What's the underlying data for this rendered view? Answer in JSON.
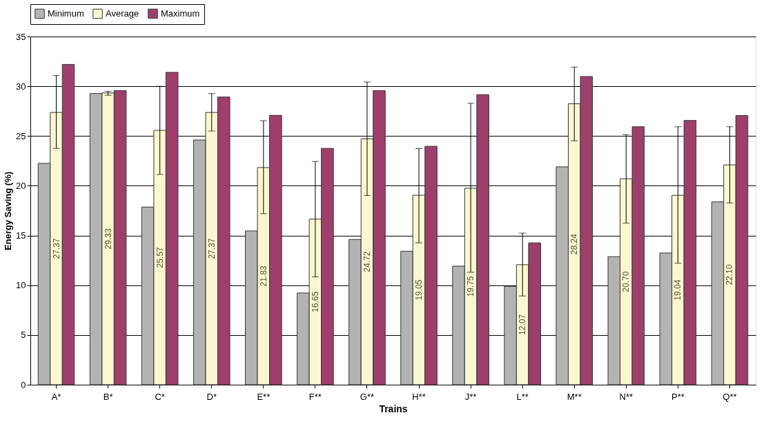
{
  "chart_data": {
    "type": "bar",
    "xlabel": "Trains",
    "ylabel": "Energy Saving (%)",
    "categories": [
      "A*",
      "B*",
      "C*",
      "D*",
      "E**",
      "F**",
      "G**",
      "H**",
      "J**",
      "L**",
      "M**",
      "N**",
      "P**",
      "Q**"
    ],
    "series": [
      {
        "name": "Minimum",
        "color": "#b3b3b3",
        "values": [
          22.25,
          29.27,
          17.86,
          24.6,
          15.46,
          9.22,
          14.6,
          13.42,
          11.92,
          9.89,
          21.9,
          12.87,
          13.24,
          18.38
        ]
      },
      {
        "name": "Average",
        "color": "#fbf7d0",
        "values": [
          27.37,
          29.33,
          25.57,
          27.37,
          21.83,
          16.65,
          24.72,
          19.05,
          19.75,
          12.07,
          28.24,
          20.7,
          19.04,
          22.1
        ],
        "value_labels": [
          "27.37",
          "29.33",
          "25.57",
          "27.37",
          "21.83",
          "16.65",
          "24.72",
          "19.05",
          "19.75",
          "12.07",
          "28.24",
          "20.70",
          "19.04",
          "22.10"
        ],
        "errors": [
          [
            23.76,
            31.08
          ],
          [
            29.1,
            29.5
          ],
          [
            21.14,
            30.0
          ],
          [
            25.5,
            29.27
          ],
          [
            17.19,
            26.54
          ],
          [
            10.84,
            22.44
          ],
          [
            19.03,
            30.43
          ],
          [
            14.26,
            23.74
          ],
          [
            11.3,
            28.29
          ],
          [
            8.92,
            15.24
          ],
          [
            24.52,
            31.93
          ],
          [
            16.24,
            25.13
          ],
          [
            12.21,
            25.93
          ],
          [
            18.26,
            25.93
          ]
        ]
      },
      {
        "name": "Maximum",
        "color": "#9e3f6b",
        "values": [
          32.2,
          29.57,
          31.4,
          28.92,
          27.08,
          23.76,
          29.57,
          23.97,
          29.16,
          14.26,
          30.98,
          25.93,
          26.56,
          27.06
        ]
      }
    ],
    "ylim": [
      0,
      35
    ],
    "yticks": [
      0,
      5,
      10,
      15,
      20,
      25,
      30,
      35
    ],
    "grid": "y",
    "legend": "top"
  }
}
